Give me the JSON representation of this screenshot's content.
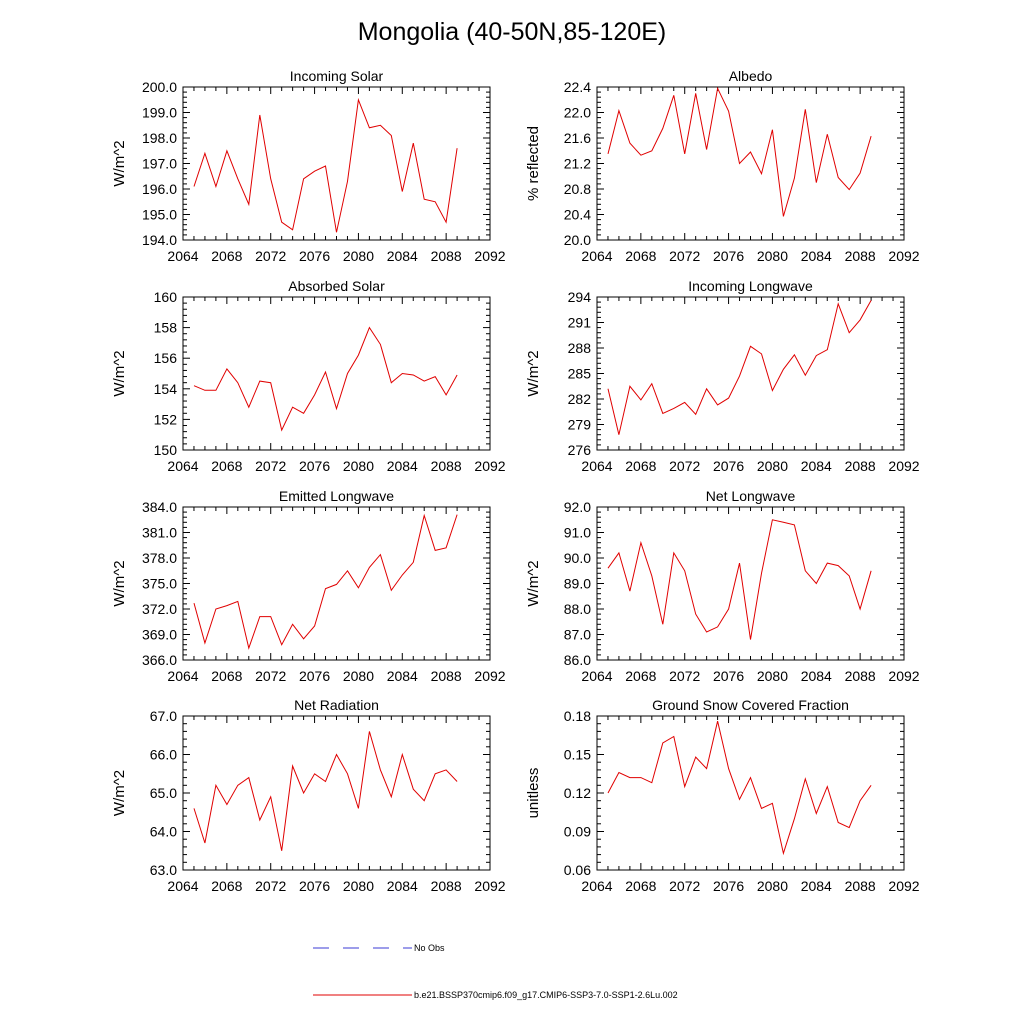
{
  "figure": {
    "title": "Mongolia (40-50N,85-120E)",
    "legend": [
      {
        "label": "No Obs",
        "color": "#3b3bd6",
        "style": "dashed"
      },
      {
        "label": "b.e21.BSSP370cmip6.f09_g17.CMIP6-SSP3-7.0-SSP1-2.6Lu.002",
        "color": "#e00000",
        "style": "solid"
      }
    ]
  },
  "chart_data": [
    {
      "type": "line",
      "title": "Incoming Solar",
      "ylabel": "W/m^2",
      "xlim": [
        2064,
        2092
      ],
      "ylim": [
        194,
        200
      ],
      "yticks": [
        "194.0",
        "195.0",
        "196.0",
        "197.0",
        "198.0",
        "199.0",
        "200.0"
      ],
      "x": [
        2065,
        2066,
        2067,
        2068,
        2069,
        2070,
        2071,
        2072,
        2073,
        2074,
        2075,
        2076,
        2077,
        2078,
        2079,
        2080,
        2081,
        2082,
        2083,
        2084,
        2085,
        2086,
        2087,
        2088,
        2089
      ],
      "series": [
        {
          "color": "#e00000",
          "values": [
            196.1,
            197.4,
            196.1,
            197.5,
            196.4,
            195.4,
            198.9,
            196.4,
            194.7,
            194.4,
            196.4,
            196.7,
            196.9,
            194.3,
            196.3,
            199.5,
            198.4,
            198.5,
            198.1,
            195.9,
            197.8,
            195.6,
            195.5,
            194.7,
            197.6
          ]
        }
      ]
    },
    {
      "type": "line",
      "title": "Albedo",
      "ylabel": "% reflected",
      "xlim": [
        2064,
        2092
      ],
      "ylim": [
        20.0,
        22.4
      ],
      "yticks": [
        "20.0",
        "20.4",
        "20.8",
        "21.2",
        "21.6",
        "22.0",
        "22.4"
      ],
      "x": [
        2065,
        2066,
        2067,
        2068,
        2069,
        2070,
        2071,
        2072,
        2073,
        2074,
        2075,
        2076,
        2077,
        2078,
        2079,
        2080,
        2081,
        2082,
        2083,
        2084,
        2085,
        2086,
        2087,
        2088,
        2089
      ],
      "series": [
        {
          "color": "#e00000",
          "values": [
            21.35,
            22.03,
            21.52,
            21.33,
            21.4,
            21.75,
            22.27,
            21.35,
            22.3,
            21.42,
            22.38,
            22.02,
            21.2,
            21.38,
            21.04,
            21.73,
            20.37,
            20.97,
            22.05,
            20.9,
            21.66,
            20.98,
            20.79,
            21.05,
            21.63
          ]
        }
      ]
    },
    {
      "type": "line",
      "title": "Absorbed Solar",
      "ylabel": "W/m^2",
      "xlim": [
        2064,
        2092
      ],
      "ylim": [
        150,
        160
      ],
      "yticks": [
        "150",
        "152",
        "154",
        "156",
        "158",
        "160"
      ],
      "x": [
        2065,
        2066,
        2067,
        2068,
        2069,
        2070,
        2071,
        2072,
        2073,
        2074,
        2075,
        2076,
        2077,
        2078,
        2079,
        2080,
        2081,
        2082,
        2083,
        2084,
        2085,
        2086,
        2087,
        2088,
        2089
      ],
      "series": [
        {
          "color": "#e00000",
          "values": [
            154.2,
            153.9,
            153.9,
            155.3,
            154.4,
            152.8,
            154.5,
            154.4,
            151.3,
            152.8,
            152.4,
            153.6,
            155.1,
            152.7,
            155.0,
            156.2,
            158.0,
            156.9,
            154.4,
            155.0,
            154.9,
            154.5,
            154.8,
            153.6,
            154.9
          ]
        }
      ]
    },
    {
      "type": "line",
      "title": "Incoming Longwave",
      "ylabel": "W/m^2",
      "xlim": [
        2064,
        2092
      ],
      "ylim": [
        276,
        294
      ],
      "yticks": [
        "276",
        "279",
        "282",
        "285",
        "288",
        "291",
        "294"
      ],
      "x": [
        2065,
        2066,
        2067,
        2068,
        2069,
        2070,
        2071,
        2072,
        2073,
        2074,
        2075,
        2076,
        2077,
        2078,
        2079,
        2080,
        2081,
        2082,
        2083,
        2084,
        2085,
        2086,
        2087,
        2088,
        2089
      ],
      "series": [
        {
          "color": "#e00000",
          "values": [
            283.2,
            277.8,
            283.5,
            281.9,
            283.8,
            280.3,
            280.9,
            281.6,
            280.2,
            283.2,
            281.3,
            282.1,
            284.7,
            288.2,
            287.3,
            283.0,
            285.5,
            287.2,
            284.8,
            287.1,
            287.8,
            293.2,
            289.8,
            291.3,
            293.6
          ]
        }
      ]
    },
    {
      "type": "line",
      "title": "Emitted Longwave",
      "ylabel": "W/m^2",
      "xlim": [
        2064,
        2092
      ],
      "ylim": [
        366,
        384
      ],
      "yticks": [
        "366.0",
        "369.0",
        "372.0",
        "375.0",
        "378.0",
        "381.0",
        "384.0"
      ],
      "x": [
        2065,
        2066,
        2067,
        2068,
        2069,
        2070,
        2071,
        2072,
        2073,
        2074,
        2075,
        2076,
        2077,
        2078,
        2079,
        2080,
        2081,
        2082,
        2083,
        2084,
        2085,
        2086,
        2087,
        2088,
        2089
      ],
      "series": [
        {
          "color": "#e00000",
          "values": [
            372.7,
            368.0,
            372.0,
            372.4,
            372.9,
            367.4,
            371.1,
            371.1,
            367.8,
            370.2,
            368.5,
            370.0,
            374.4,
            374.9,
            376.5,
            374.5,
            376.9,
            378.4,
            374.2,
            376.0,
            377.5,
            383.0,
            378.9,
            379.2,
            383.1
          ]
        }
      ]
    },
    {
      "type": "line",
      "title": "Net Longwave",
      "ylabel": "W/m^2",
      "xlim": [
        2064,
        2092
      ],
      "ylim": [
        86,
        92
      ],
      "yticks": [
        "86.0",
        "87.0",
        "88.0",
        "89.0",
        "90.0",
        "91.0",
        "92.0"
      ],
      "x": [
        2065,
        2066,
        2067,
        2068,
        2069,
        2070,
        2071,
        2072,
        2073,
        2074,
        2075,
        2076,
        2077,
        2078,
        2079,
        2080,
        2081,
        2082,
        2083,
        2084,
        2085,
        2086,
        2087,
        2088,
        2089
      ],
      "series": [
        {
          "color": "#e00000",
          "values": [
            89.6,
            90.2,
            88.7,
            90.6,
            89.3,
            87.4,
            90.2,
            89.5,
            87.8,
            87.1,
            87.3,
            88.0,
            89.8,
            86.8,
            89.4,
            91.5,
            91.4,
            91.3,
            89.5,
            89.0,
            89.8,
            89.7,
            89.3,
            88.0,
            89.5
          ]
        }
      ]
    },
    {
      "type": "line",
      "title": "Net Radiation",
      "ylabel": "W/m^2",
      "xlim": [
        2064,
        2092
      ],
      "ylim": [
        63,
        67
      ],
      "yticks": [
        "63.0",
        "64.0",
        "65.0",
        "66.0",
        "67.0"
      ],
      "x": [
        2065,
        2066,
        2067,
        2068,
        2069,
        2070,
        2071,
        2072,
        2073,
        2074,
        2075,
        2076,
        2077,
        2078,
        2079,
        2080,
        2081,
        2082,
        2083,
        2084,
        2085,
        2086,
        2087,
        2088,
        2089
      ],
      "series": [
        {
          "color": "#e00000",
          "values": [
            64.6,
            63.7,
            65.2,
            64.7,
            65.2,
            65.4,
            64.3,
            64.9,
            63.5,
            65.7,
            65.0,
            65.5,
            65.3,
            66.0,
            65.5,
            64.6,
            66.6,
            65.6,
            64.9,
            66.0,
            65.1,
            64.8,
            65.5,
            65.6,
            65.3
          ]
        }
      ]
    },
    {
      "type": "line",
      "title": "Ground Snow Covered Fraction",
      "ylabel": "unitless",
      "xlim": [
        2064,
        2092
      ],
      "ylim": [
        0.06,
        0.18
      ],
      "yticks": [
        "0.06",
        "0.09",
        "0.12",
        "0.15",
        "0.18"
      ],
      "x": [
        2065,
        2066,
        2067,
        2068,
        2069,
        2070,
        2071,
        2072,
        2073,
        2074,
        2075,
        2076,
        2077,
        2078,
        2079,
        2080,
        2081,
        2082,
        2083,
        2084,
        2085,
        2086,
        2087,
        2088,
        2089
      ],
      "series": [
        {
          "color": "#e00000",
          "values": [
            0.12,
            0.136,
            0.132,
            0.132,
            0.128,
            0.159,
            0.164,
            0.125,
            0.148,
            0.139,
            0.176,
            0.139,
            0.115,
            0.132,
            0.108,
            0.112,
            0.073,
            0.1,
            0.131,
            0.104,
            0.125,
            0.097,
            0.093,
            0.114,
            0.126
          ]
        }
      ]
    }
  ],
  "xticks": [
    "2064",
    "2068",
    "2072",
    "2076",
    "2080",
    "2084",
    "2088",
    "2092"
  ]
}
